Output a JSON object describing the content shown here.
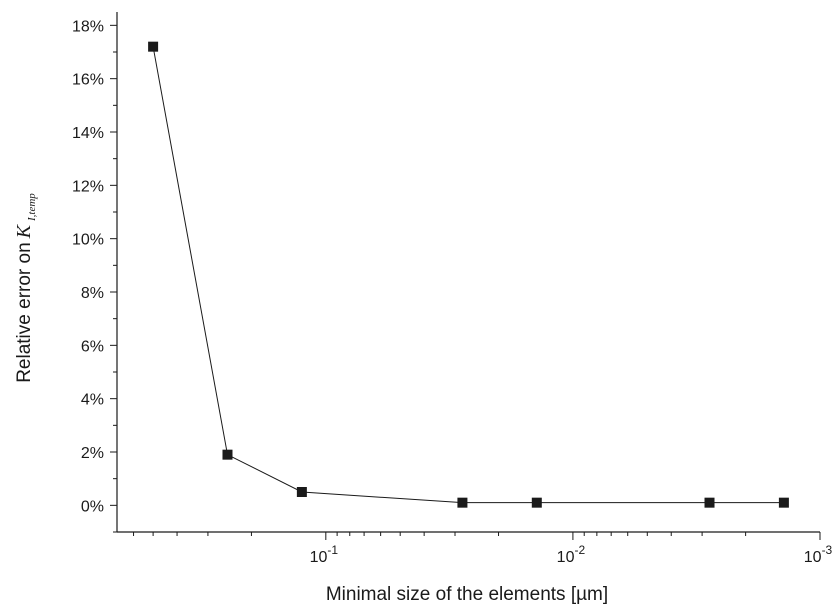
{
  "chart_data": {
    "type": "scatter",
    "xlabel": "Minimal size of the elements [µm]",
    "ylabel_prefix": "Relative error on",
    "ylabel_symbol": "K",
    "ylabel_subscript": "I,temp",
    "x_scale": "log",
    "x_reversed": true,
    "xlim": [
      0.7,
      0.001
    ],
    "x_ticks": [
      {
        "value": 0.1,
        "base": "10",
        "exp": "-1"
      },
      {
        "value": 0.01,
        "base": "10",
        "exp": "-2"
      },
      {
        "value": 0.001,
        "base": "10",
        "exp": "-3"
      }
    ],
    "ylim": [
      -1,
      18.5
    ],
    "y_ticks": [
      {
        "value": 0,
        "label": "0%"
      },
      {
        "value": 2,
        "label": "2%"
      },
      {
        "value": 4,
        "label": "4%"
      },
      {
        "value": 6,
        "label": "6%"
      },
      {
        "value": 8,
        "label": "8%"
      },
      {
        "value": 10,
        "label": "10%"
      },
      {
        "value": 12,
        "label": "12%"
      },
      {
        "value": 14,
        "label": "14%"
      },
      {
        "value": 16,
        "label": "16%"
      },
      {
        "value": 18,
        "label": "18%"
      }
    ],
    "y_minor_step": 1,
    "grid": false,
    "marker": "square",
    "series": [
      {
        "color": "#1a1a1a",
        "x": [
          0.5,
          0.25,
          0.125,
          0.028,
          0.014,
          0.0028,
          0.0014
        ],
        "y": [
          17.2,
          1.9,
          0.5,
          0.1,
          0.1,
          0.1,
          0.1
        ]
      }
    ]
  }
}
